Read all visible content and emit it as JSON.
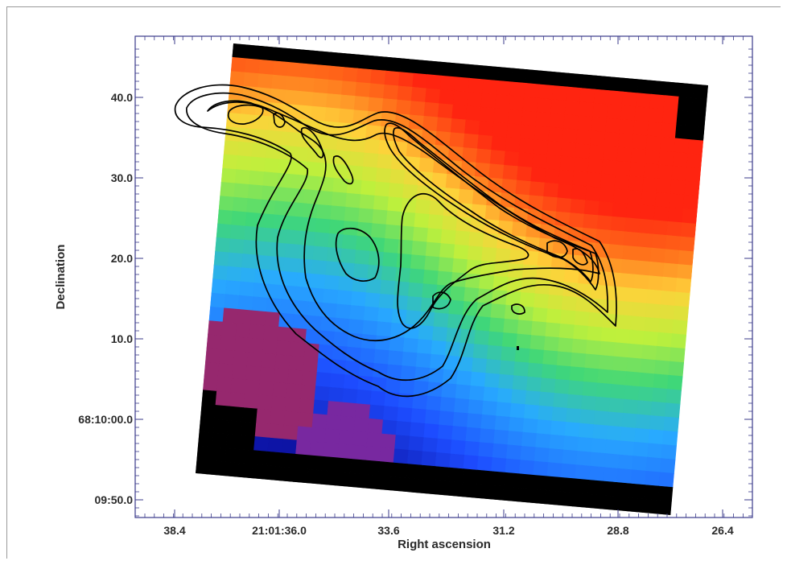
{
  "chart_data": {
    "type": "heatmap",
    "title": "",
    "xlabel": "Right ascension",
    "ylabel": "Declination",
    "x_ticks": [
      "38.4",
      "21:01:36.0",
      "33.6",
      "31.2",
      "28.8",
      "26.4"
    ],
    "y_ticks": [
      "09:50.0",
      "68:10:00.0",
      "10.0",
      "20.0",
      "30.0",
      "40.0"
    ],
    "colors": {
      "axis": "#3a3a8a",
      "contour": "#000000",
      "background": "#ffffff",
      "map_palette": [
        "#000000",
        "#1a1aa0",
        "#1d4cff",
        "#28b7ff",
        "#3fdc7c",
        "#c9f03a",
        "#ffd03a",
        "#ff6a1a",
        "#ff2410",
        "#7a2a60"
      ]
    },
    "contour_levels": 5,
    "grid": false,
    "legend": "none"
  }
}
